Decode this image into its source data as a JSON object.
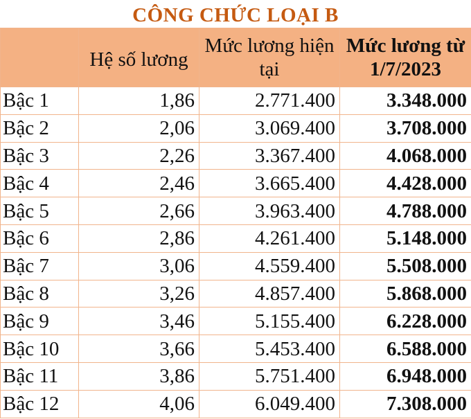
{
  "title": "CÔNG CHỨC LOẠI B",
  "headers": [
    "",
    "Hệ số lương",
    "Mức lương hiện tại",
    "Mức lương từ 1/7/2023"
  ],
  "colors": {
    "title": "#c55a11",
    "header_bg": "#f4b183",
    "border": "#f1b48c"
  },
  "rows": [
    {
      "level": "Bậc 1",
      "coef": "1,86",
      "current": "2.771.400",
      "new": "3.348.000"
    },
    {
      "level": "Bậc 2",
      "coef": "2,06",
      "current": "3.069.400",
      "new": "3.708.000"
    },
    {
      "level": "Bậc 3",
      "coef": "2,26",
      "current": "3.367.400",
      "new": "4.068.000"
    },
    {
      "level": "Bậc 4",
      "coef": "2,46",
      "current": "3.665.400",
      "new": "4.428.000"
    },
    {
      "level": "Bậc 5",
      "coef": "2,66",
      "current": "3.963.400",
      "new": "4.788.000"
    },
    {
      "level": "Bậc 6",
      "coef": "2,86",
      "current": "4.261.400",
      "new": "5.148.000"
    },
    {
      "level": "Bậc 7",
      "coef": "3,06",
      "current": "4.559.400",
      "new": "5.508.000"
    },
    {
      "level": "Bậc 8",
      "coef": "3,26",
      "current": "4.857.400",
      "new": "5.868.000"
    },
    {
      "level": "Bậc 9",
      "coef": "3,46",
      "current": "5.155.400",
      "new": "6.228.000"
    },
    {
      "level": "Bậc 10",
      "coef": "3,66",
      "current": "5.453.400",
      "new": "6.588.000"
    },
    {
      "level": "Bậc 11",
      "coef": "3,86",
      "current": "5.751.400",
      "new": "6.948.000"
    },
    {
      "level": "Bậc 12",
      "coef": "4,06",
      "current": "6.049.400",
      "new": "7.308.000"
    }
  ]
}
